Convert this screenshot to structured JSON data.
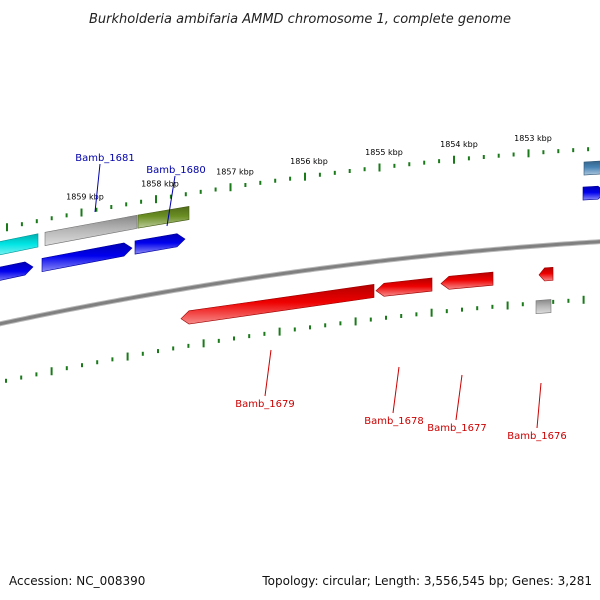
{
  "title": "Burkholderia ambifaria AMMD chromosome 1, complete genome",
  "footer": {
    "accession": "Accession: NC_008390",
    "summary": "Topology: circular; Length: 3,556,545 bp; Genes: 3,281"
  },
  "colors": {
    "backbone": "#808080",
    "ticks": "#1a7a1a",
    "forward_label": "#0000aa",
    "reverse_label": "#cc0000",
    "cyan": "#00e5e5",
    "blue": "#0000ee",
    "gray": "#b4b4b4",
    "olive": "#6b8e23",
    "red": "#ee0000",
    "steel": "#4682b4"
  },
  "tick_labels": [
    "1859 kbp",
    "1858 kbp",
    "1857 kbp",
    "1856 kbp",
    "1855 kbp",
    "1854 kbp",
    "1853 kbp"
  ],
  "gene_labels": [
    {
      "name": "Bamb_1681",
      "strand": "forward"
    },
    {
      "name": "Bamb_1680",
      "strand": "forward"
    },
    {
      "name": "Bamb_1679",
      "strand": "reverse"
    },
    {
      "name": "Bamb_1678",
      "strand": "reverse"
    },
    {
      "name": "Bamb_1677",
      "strand": "reverse"
    },
    {
      "name": "Bamb_1676",
      "strand": "reverse"
    }
  ],
  "features": [
    {
      "track": "outer",
      "color": "cyan"
    },
    {
      "track": "outer",
      "color": "gray"
    },
    {
      "track": "outer",
      "color": "olive"
    },
    {
      "track": "forward",
      "color": "blue"
    },
    {
      "track": "forward",
      "color": "blue"
    },
    {
      "track": "forward",
      "color": "blue"
    },
    {
      "track": "reverse",
      "color": "red"
    },
    {
      "track": "reverse",
      "color": "red"
    },
    {
      "track": "reverse",
      "color": "red"
    },
    {
      "track": "reverse",
      "color": "red"
    },
    {
      "track": "inner",
      "color": "gray"
    },
    {
      "track": "outer",
      "color": "steel"
    },
    {
      "track": "forward",
      "color": "blue"
    }
  ]
}
